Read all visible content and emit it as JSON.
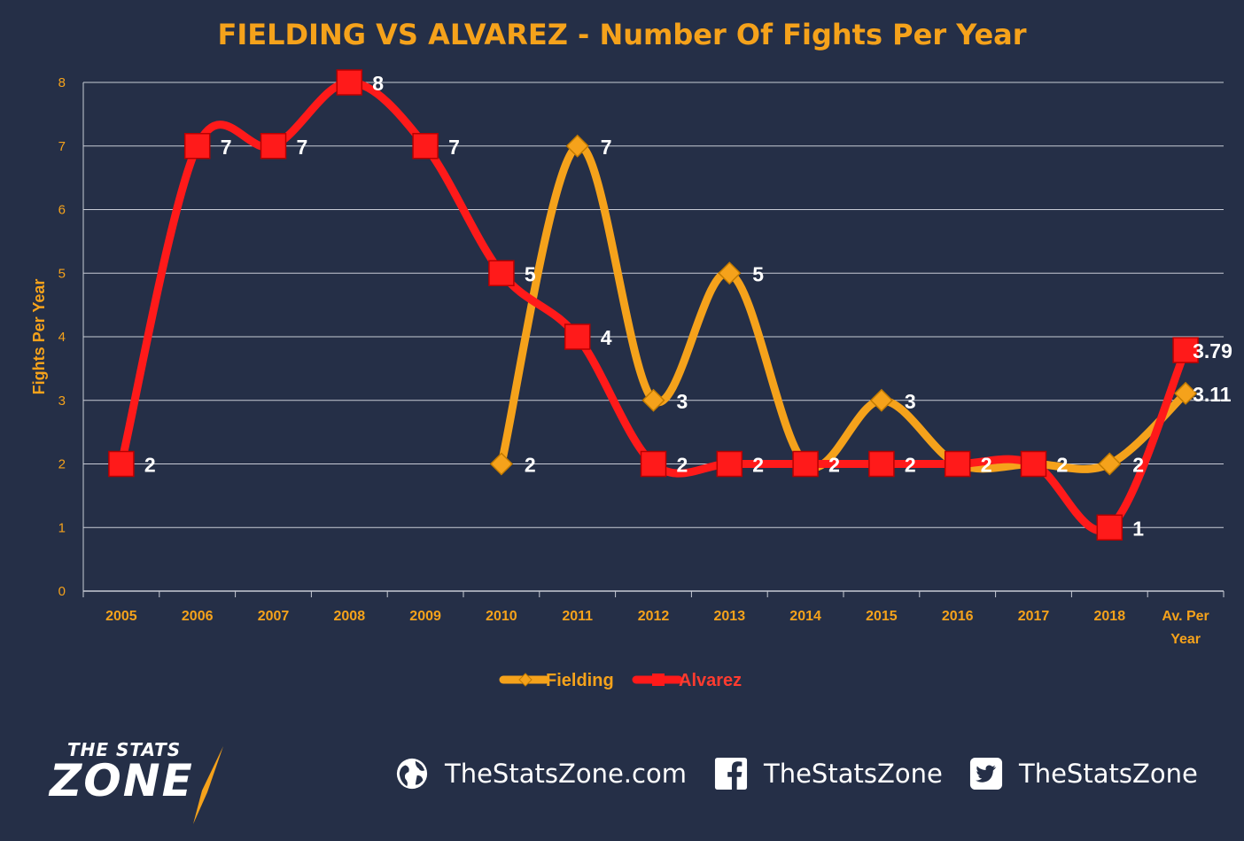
{
  "chart_data": {
    "type": "line",
    "title": "FIELDING VS ALVAREZ - Number Of Fights Per Year",
    "ylabel": "Fights Per Year",
    "xlabel": "",
    "ylim": [
      0,
      8
    ],
    "yticks": [
      0,
      1,
      2,
      3,
      4,
      5,
      6,
      7,
      8
    ],
    "grid": true,
    "legend_position": "bottom",
    "categories": [
      "2005",
      "2006",
      "2007",
      "2008",
      "2009",
      "2010",
      "2011",
      "2012",
      "2013",
      "2014",
      "2015",
      "2016",
      "2017",
      "2018",
      "Av. Per Year"
    ],
    "series": [
      {
        "name": "Fielding",
        "color": "#f5a21b",
        "marker": "diamond",
        "values": [
          null,
          null,
          null,
          null,
          null,
          2,
          7,
          3,
          5,
          2,
          3,
          2,
          2,
          2,
          3.11
        ],
        "labels": [
          null,
          null,
          null,
          null,
          null,
          "2",
          "7",
          "3",
          "5",
          "2",
          "3",
          "2",
          "2",
          "2",
          "3.11"
        ]
      },
      {
        "name": "Alvarez",
        "color": "#ff1a1a",
        "marker": "square",
        "values": [
          2,
          7,
          7,
          8,
          7,
          5,
          4,
          2,
          2,
          2,
          2,
          2,
          2,
          1,
          3.79
        ],
        "labels": [
          "2",
          "7",
          "7",
          "8",
          "7",
          "5",
          "4",
          "2",
          "2",
          "2",
          "2",
          "2",
          "2",
          "1",
          "3.79"
        ]
      }
    ]
  },
  "footer": {
    "brand_line1": "THE STATS",
    "brand_line2": "ZONE",
    "website": "TheStatsZone.com",
    "facebook": "TheStatsZone",
    "twitter": "TheStatsZone",
    "icons": [
      "globe-icon",
      "facebook-icon",
      "twitter-icon"
    ]
  }
}
